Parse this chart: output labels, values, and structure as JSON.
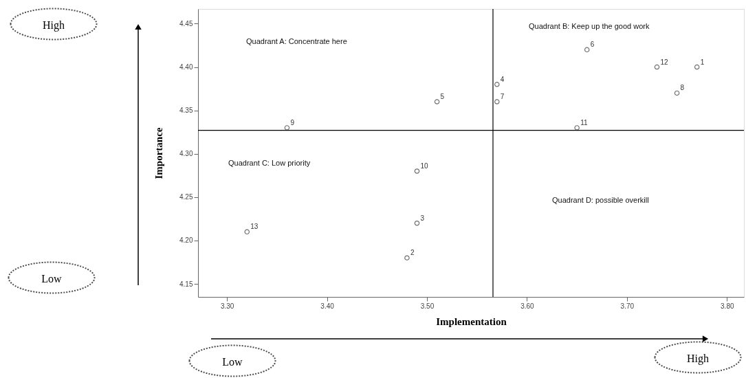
{
  "chart_data": {
    "type": "scatter",
    "xlabel": "Implementation",
    "ylabel": "Importance",
    "x": [
      3.77,
      3.48,
      3.49,
      3.57,
      3.51,
      3.66,
      3.57,
      3.75,
      3.36,
      3.49,
      3.65,
      3.73,
      3.32
    ],
    "values": [
      4.4,
      4.18,
      4.22,
      4.38,
      4.36,
      4.42,
      4.36,
      4.37,
      4.33,
      4.28,
      4.33,
      4.4,
      4.21
    ],
    "color": "#333333",
    "marker": "circle",
    "grid": false,
    "xlim": [
      3.271,
      3.817
    ],
    "xticks": [
      {
        "value": 3.3,
        "label": "3.30"
      },
      {
        "value": 3.4,
        "label": "3.40"
      },
      {
        "value": 3.5,
        "label": "3.50"
      },
      {
        "value": 3.6,
        "label": "3.60"
      },
      {
        "value": 3.7,
        "label": "3.70"
      },
      {
        "value": 3.8,
        "label": "3.80"
      }
    ],
    "ylim": [
      4.135,
      4.467
    ],
    "yticks": [
      {
        "value": 4.15,
        "label": "4.15"
      },
      {
        "value": 4.2,
        "label": "4.20"
      },
      {
        "value": 4.25,
        "label": "4.25"
      },
      {
        "value": 4.3,
        "label": "4.30"
      },
      {
        "value": 4.35,
        "label": "4.35"
      },
      {
        "value": 4.4,
        "label": "4.40"
      },
      {
        "value": 4.45,
        "label": "4.45"
      }
    ],
    "ref_lines": [
      {
        "axis": "x",
        "value": 3.566,
        "color": "#000000"
      },
      {
        "axis": "y",
        "value": 4.327,
        "color": "#000000"
      }
    ],
    "annotations": [
      "Quadrant A: Concentrate here",
      "Quadrant B: Keep up the good work",
      "Quadrant C: Low priority",
      "Quadrant D: possible overkill",
      "High",
      "Low",
      "Low",
      "High",
      {
        "text": "1",
        "x": 3.77,
        "y": 4.4
      },
      {
        "text": "2",
        "x": 3.48,
        "y": 4.18
      },
      {
        "text": "3",
        "x": 3.49,
        "y": 4.22
      },
      {
        "text": "4",
        "x": 3.57,
        "y": 4.38
      },
      {
        "text": "5",
        "x": 3.51,
        "y": 4.36
      },
      {
        "text": "6",
        "x": 3.66,
        "y": 4.42
      },
      {
        "text": "7",
        "x": 3.57,
        "y": 4.36
      },
      {
        "text": "8",
        "x": 3.75,
        "y": 4.37
      },
      {
        "text": "9",
        "x": 3.36,
        "y": 4.33
      },
      {
        "text": "10",
        "x": 3.49,
        "y": 4.28
      },
      {
        "text": "11",
        "x": 3.65,
        "y": 4.33
      },
      {
        "text": "12",
        "x": 3.73,
        "y": 4.4
      },
      {
        "text": "13",
        "x": 3.32,
        "y": 4.21
      }
    ]
  }
}
